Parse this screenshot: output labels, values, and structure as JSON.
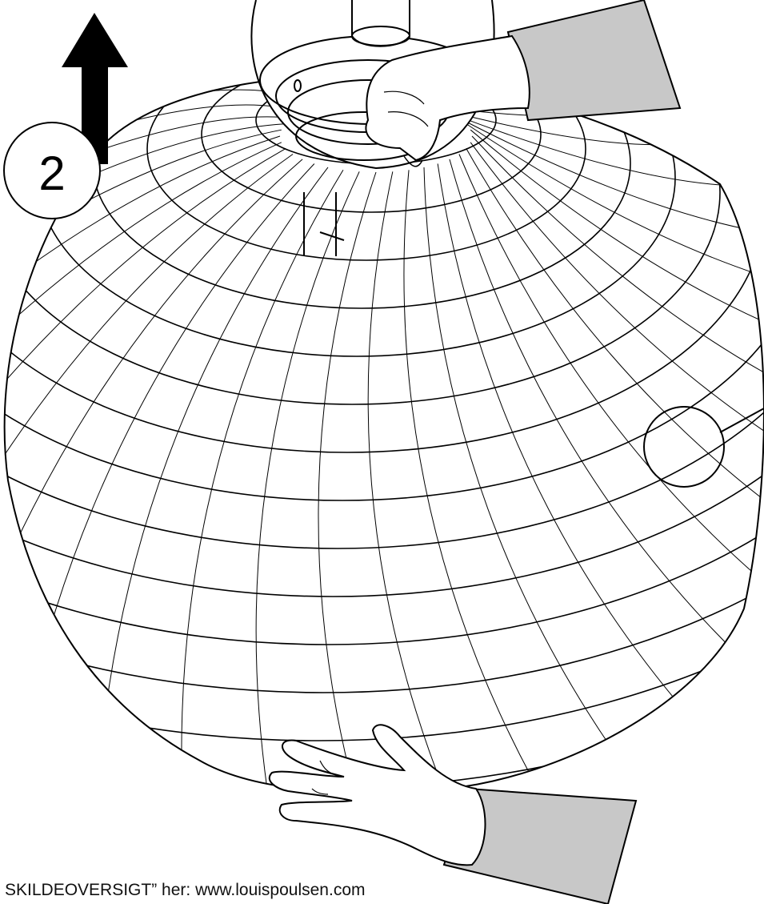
{
  "diagram": {
    "step_number": "2",
    "arrow_direction": "up",
    "caption": "SKILDEOVERSIGT” her: www.louispoulsen.com",
    "colors": {
      "line": "#000000",
      "sleeve": "#c8c8c8",
      "background": "#ffffff"
    },
    "icons": [
      "up-arrow-icon",
      "step-number-circle",
      "detail-callout-circle",
      "hand-icon",
      "pendant-sphere"
    ]
  }
}
